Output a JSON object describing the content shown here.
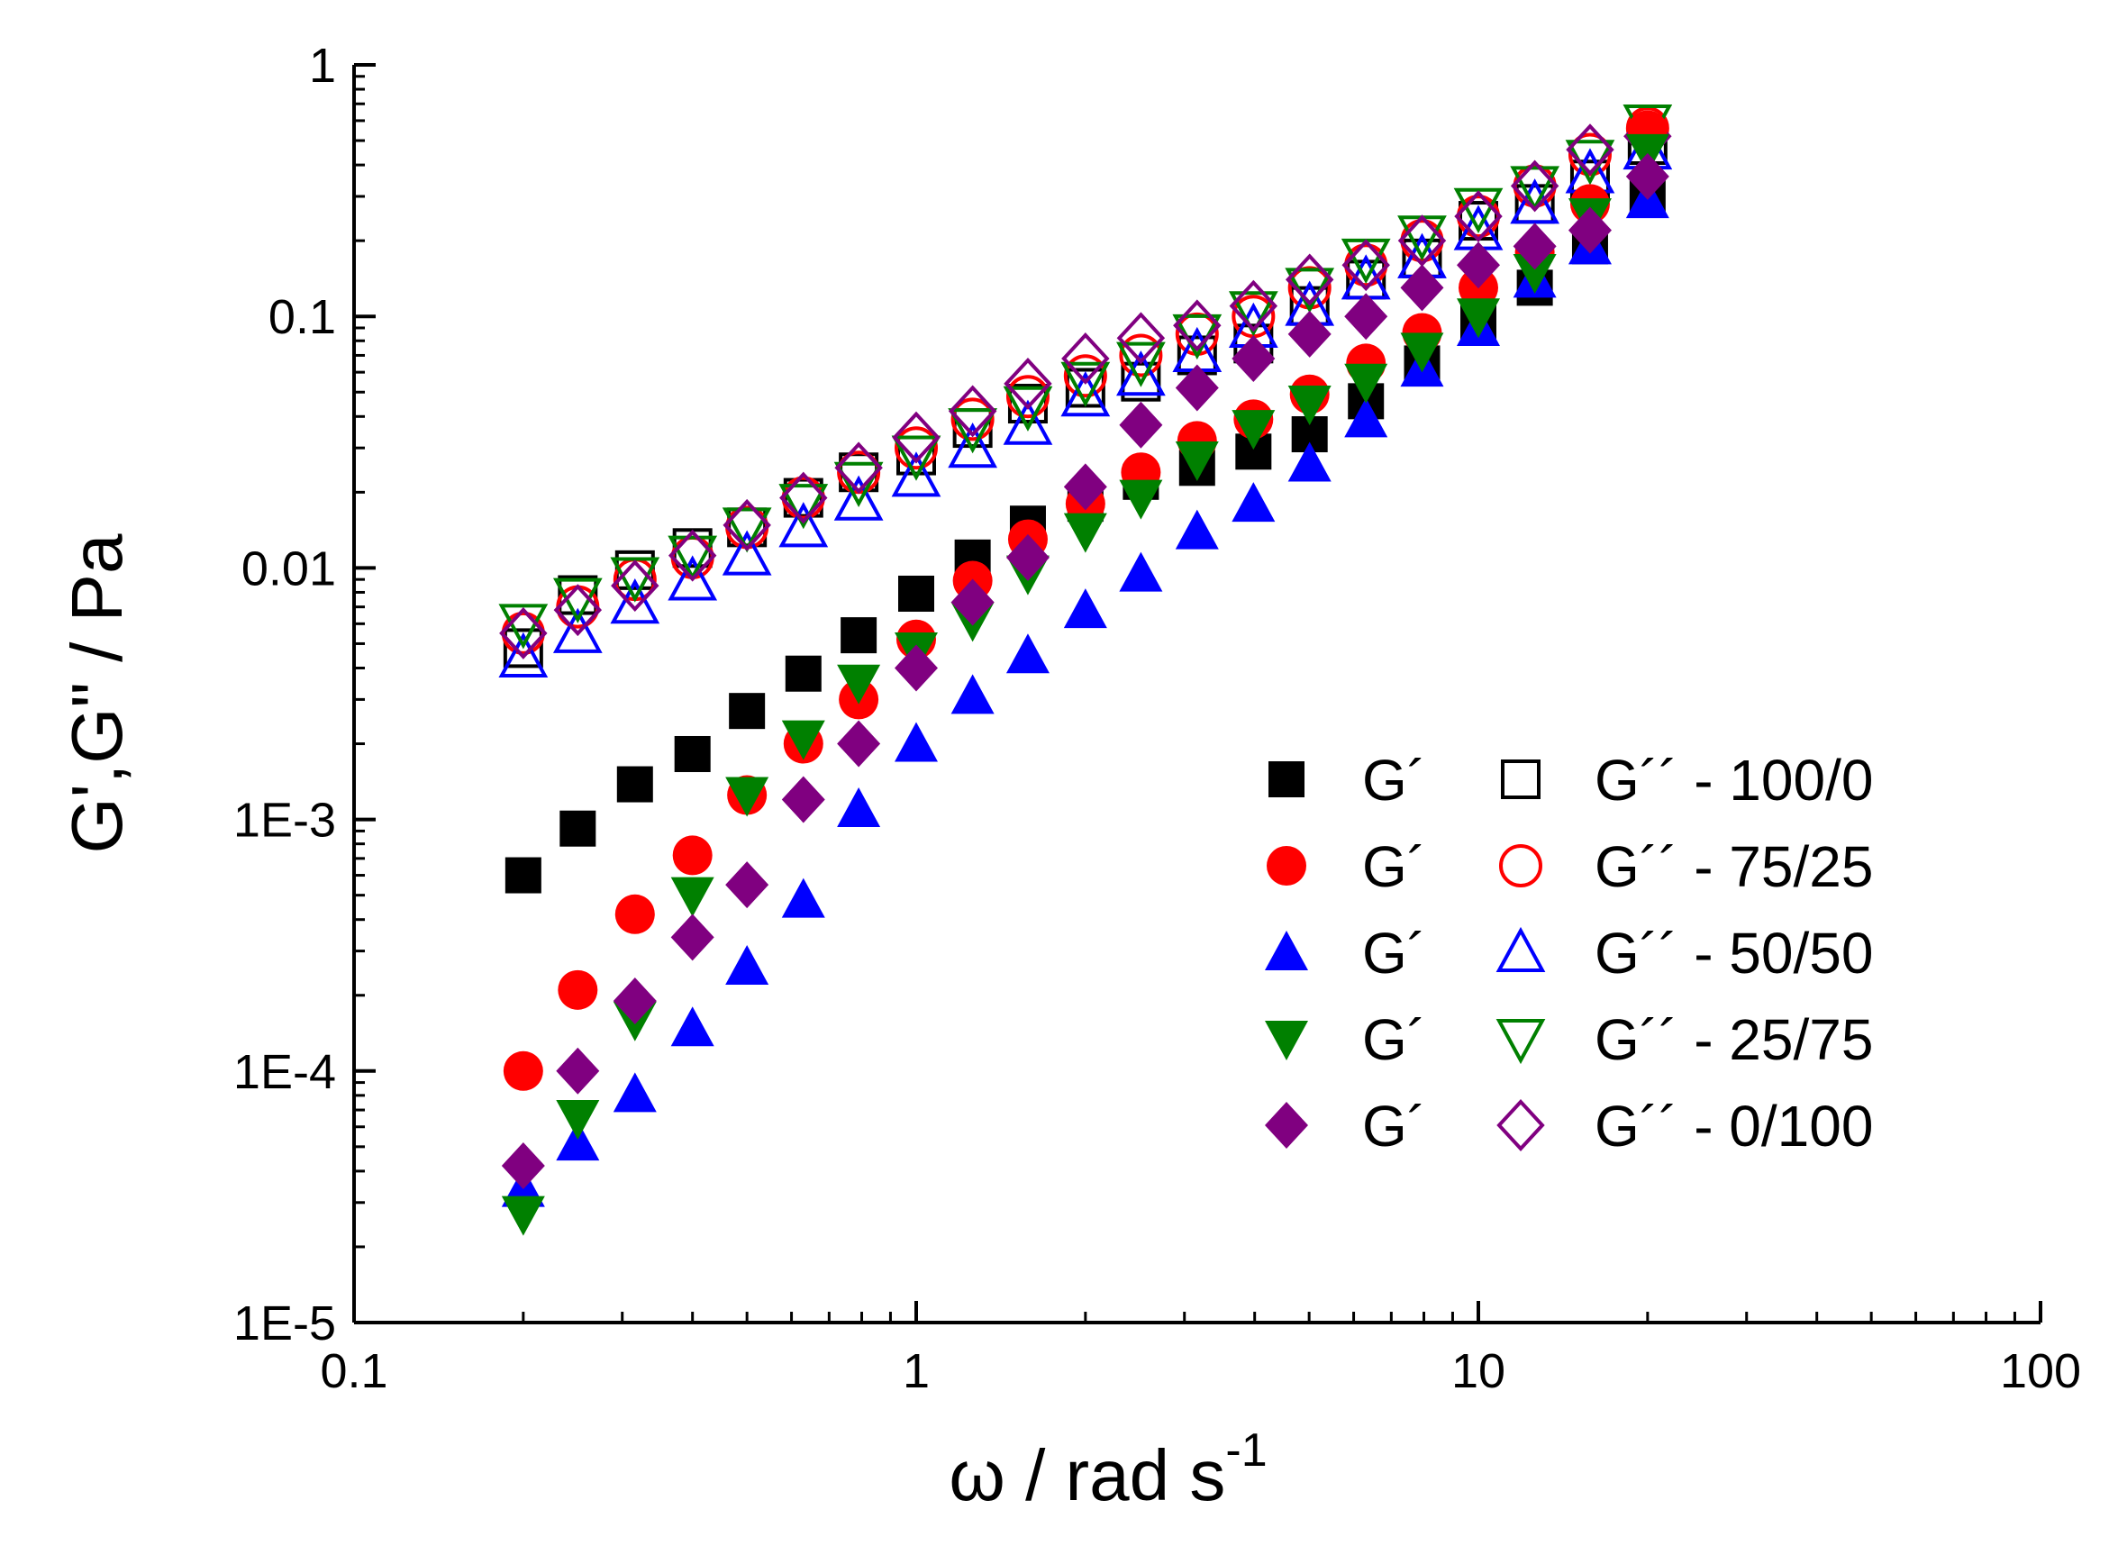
{
  "chart_data": {
    "type": "scatter",
    "title": "",
    "xlabel": "ω / rad s",
    "xlabel_sup": "-1",
    "ylabel": "G',G\" / Pa",
    "xscale": "log",
    "yscale": "log",
    "xlim": [
      0.1,
      100
    ],
    "ylim": [
      1e-05,
      1
    ],
    "grid": false,
    "legend_position": "center-right",
    "x_ticks": [
      {
        "value": 0.1,
        "label": "0.1"
      },
      {
        "value": 1,
        "label": "1"
      },
      {
        "value": 10,
        "label": "10"
      },
      {
        "value": 100,
        "label": "100"
      }
    ],
    "y_ticks": [
      {
        "value": 1e-05,
        "label": "1E-5"
      },
      {
        "value": 0.0001,
        "label": "1E-4"
      },
      {
        "value": 0.001,
        "label": "1E-3"
      },
      {
        "value": 0.01,
        "label": "0.01"
      },
      {
        "value": 0.1,
        "label": "0.1"
      },
      {
        "value": 1,
        "label": "1"
      }
    ],
    "x": [
      0.2,
      0.25,
      0.316,
      0.4,
      0.5,
      0.63,
      0.79,
      1.0,
      1.26,
      1.58,
      2.0,
      2.51,
      3.16,
      3.98,
      5.01,
      6.31,
      7.94,
      10.0,
      12.6,
      15.8,
      20.0
    ],
    "series": [
      {
        "name": "G´ 100/0",
        "legend": "G´",
        "marker": "square",
        "filled": true,
        "color": "#000000",
        "values": [
          0.0006,
          0.00092,
          0.00138,
          0.00182,
          0.0027,
          0.0038,
          0.0054,
          0.0079,
          0.011,
          0.015,
          0.018,
          0.022,
          0.025,
          0.029,
          0.034,
          0.046,
          0.065,
          0.095,
          0.13,
          0.19,
          0.3
        ]
      },
      {
        "name": "G´´ 100/0",
        "legend": "G´´ - 100/0",
        "marker": "square",
        "filled": false,
        "color": "#000000",
        "values": [
          0.0048,
          0.0078,
          0.0098,
          0.012,
          0.0145,
          0.019,
          0.024,
          0.028,
          0.036,
          0.045,
          0.052,
          0.055,
          0.07,
          0.078,
          0.11,
          0.14,
          0.17,
          0.24,
          0.28,
          0.35,
          0.48
        ]
      },
      {
        "name": "G´ 75/25",
        "legend": "G´",
        "marker": "circle",
        "filled": true,
        "color": "#ff0000",
        "values": [
          0.0001,
          0.00021,
          0.00042,
          0.00072,
          0.00125,
          0.002,
          0.003,
          0.0052,
          0.0089,
          0.013,
          0.018,
          0.024,
          0.032,
          0.039,
          0.049,
          0.065,
          0.086,
          0.13,
          0.18,
          0.28,
          0.55
        ]
      },
      {
        "name": "G´´ 75/25",
        "legend": "G´´ - 75/25",
        "marker": "circle",
        "filled": false,
        "color": "#ff0000",
        "values": [
          0.0055,
          0.007,
          0.009,
          0.011,
          0.0145,
          0.019,
          0.024,
          0.03,
          0.039,
          0.048,
          0.058,
          0.07,
          0.085,
          0.1,
          0.13,
          0.16,
          0.2,
          0.25,
          0.33,
          0.44,
          0.56
        ]
      },
      {
        "name": "G´ 50/50",
        "legend": "G´",
        "marker": "triangle-up",
        "filled": true,
        "color": "#0000ff",
        "values": [
          3.4e-05,
          5.2e-05,
          8.1e-05,
          0.000148,
          0.00026,
          0.00048,
          0.0011,
          0.002,
          0.0031,
          0.0045,
          0.0068,
          0.0095,
          0.014,
          0.018,
          0.026,
          0.039,
          0.062,
          0.09,
          0.14,
          0.19,
          0.29
        ]
      },
      {
        "name": "G´´ 50/50",
        "legend": "G´´ - 50/50",
        "marker": "triangle-up",
        "filled": false,
        "color": "#0000ff",
        "values": [
          0.0044,
          0.0055,
          0.0072,
          0.0089,
          0.0112,
          0.0145,
          0.0185,
          0.023,
          0.03,
          0.037,
          0.048,
          0.058,
          0.072,
          0.09,
          0.11,
          0.14,
          0.17,
          0.22,
          0.28,
          0.37,
          0.46
        ]
      },
      {
        "name": "G´ 25/75",
        "legend": "G´",
        "marker": "triangle-down",
        "filled": true,
        "color": "#008000",
        "values": [
          2.7e-05,
          6.5e-05,
          0.00016,
          0.0005,
          0.00125,
          0.0021,
          0.0035,
          0.0047,
          0.0062,
          0.0095,
          0.014,
          0.019,
          0.027,
          0.036,
          0.045,
          0.055,
          0.073,
          0.1,
          0.15,
          0.25,
          0.45
        ]
      },
      {
        "name": "G´´ 25/75",
        "legend": "G´´ - 25/75",
        "marker": "triangle-down",
        "filled": false,
        "color": "#008000",
        "values": [
          0.006,
          0.0076,
          0.0092,
          0.0112,
          0.0145,
          0.018,
          0.022,
          0.028,
          0.036,
          0.044,
          0.055,
          0.066,
          0.085,
          0.105,
          0.13,
          0.17,
          0.21,
          0.27,
          0.33,
          0.42,
          0.58
        ]
      },
      {
        "name": "G´ 0/100",
        "legend": "G´",
        "marker": "diamond",
        "filled": true,
        "color": "#800080",
        "values": [
          4.2e-05,
          0.0001,
          0.00019,
          0.00034,
          0.00055,
          0.0012,
          0.002,
          0.004,
          0.0073,
          0.011,
          0.021,
          0.037,
          0.052,
          0.068,
          0.085,
          0.1,
          0.13,
          0.16,
          0.19,
          0.22,
          0.36
        ]
      },
      {
        "name": "G´´ 0/100",
        "legend": "G´´ - 0/100",
        "marker": "diamond",
        "filled": false,
        "color": "#800080",
        "values": [
          0.0055,
          0.0068,
          0.0085,
          0.0112,
          0.0148,
          0.019,
          0.025,
          0.033,
          0.042,
          0.054,
          0.068,
          0.082,
          0.092,
          0.11,
          0.14,
          0.16,
          0.2,
          0.25,
          0.33,
          0.46,
          0.52
        ]
      }
    ]
  }
}
